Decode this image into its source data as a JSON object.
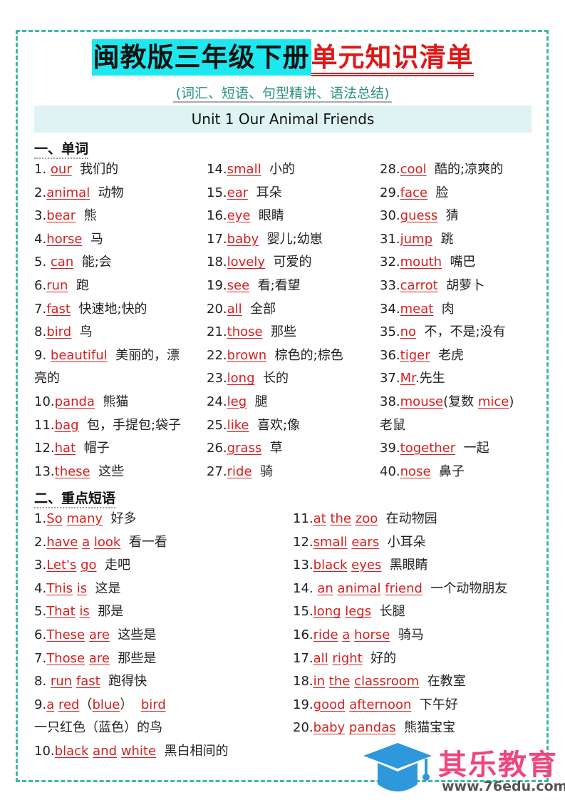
{
  "title": {
    "part1": "闽教版三年级下册",
    "part2": "单元知识清单"
  },
  "subtitle": "(词汇、短语、句型精讲、语法总结)",
  "unit": "Unit 1 Our Animal Friends",
  "words": {
    "heading": "一、单词",
    "columns": [
      [
        [
          {
            "t": "1. "
          },
          {
            "t": "our",
            "u": 1
          },
          {
            "t": "  我们的"
          }
        ],
        [
          {
            "t": "2."
          },
          {
            "t": "animal",
            "u": 1
          },
          {
            "t": "  动物"
          }
        ],
        [
          {
            "t": "3."
          },
          {
            "t": "bear",
            "u": 1
          },
          {
            "t": "  熊"
          }
        ],
        [
          {
            "t": "4."
          },
          {
            "t": "horse",
            "u": 1
          },
          {
            "t": "  马"
          }
        ],
        [
          {
            "t": "5. "
          },
          {
            "t": "can",
            "u": 1
          },
          {
            "t": "  能;会"
          }
        ],
        [
          {
            "t": "6."
          },
          {
            "t": "run",
            "u": 1
          },
          {
            "t": "  跑"
          }
        ],
        [
          {
            "t": "7."
          },
          {
            "t": "fast",
            "u": 1
          },
          {
            "t": "  快速地;快的"
          }
        ],
        [
          {
            "t": "8."
          },
          {
            "t": "bird",
            "u": 1
          },
          {
            "t": "  鸟"
          }
        ],
        [
          {
            "t": "9. "
          },
          {
            "t": "beautiful",
            "u": 1
          },
          {
            "t": "  美丽的，漂"
          },
          {
            "br": 1
          },
          {
            "t": "亮的"
          }
        ],
        [
          {
            "t": "10."
          },
          {
            "t": "panda",
            "u": 1
          },
          {
            "t": "  熊猫"
          }
        ],
        [
          {
            "t": "11."
          },
          {
            "t": "bag",
            "u": 1
          },
          {
            "t": "  包，手提包;袋子"
          }
        ],
        [
          {
            "t": "12."
          },
          {
            "t": "hat",
            "u": 1
          },
          {
            "t": "  帽子"
          }
        ],
        [
          {
            "t": "13."
          },
          {
            "t": "these",
            "u": 1
          },
          {
            "t": "  这些"
          }
        ]
      ],
      [
        [
          {
            "t": "14."
          },
          {
            "t": "small",
            "u": 1
          },
          {
            "t": "  小的"
          }
        ],
        [
          {
            "t": "15."
          },
          {
            "t": "ear",
            "u": 1
          },
          {
            "t": "  耳朵"
          }
        ],
        [
          {
            "t": "16."
          },
          {
            "t": "eye",
            "u": 1
          },
          {
            "t": "  眼睛"
          }
        ],
        [
          {
            "t": "17."
          },
          {
            "t": "baby",
            "u": 1
          },
          {
            "t": "  婴儿;幼崽"
          }
        ],
        [
          {
            "t": "18."
          },
          {
            "t": "lovely",
            "u": 1
          },
          {
            "t": "  可爱的"
          }
        ],
        [
          {
            "t": "19."
          },
          {
            "t": "see",
            "u": 1
          },
          {
            "t": "  看;看望"
          }
        ],
        [
          {
            "t": "20."
          },
          {
            "t": "all",
            "u": 1
          },
          {
            "t": "  全部"
          }
        ],
        [
          {
            "t": "21."
          },
          {
            "t": "those",
            "u": 1
          },
          {
            "t": "  那些"
          }
        ],
        [
          {
            "t": "22."
          },
          {
            "t": "brown",
            "u": 1
          },
          {
            "t": "  棕色的;棕色"
          }
        ],
        [
          {
            "t": "23."
          },
          {
            "t": "long",
            "u": 1
          },
          {
            "t": "  长的"
          }
        ],
        [
          {
            "t": "24."
          },
          {
            "t": "leg",
            "u": 1
          },
          {
            "t": "  腿"
          }
        ],
        [
          {
            "t": "25."
          },
          {
            "t": "like",
            "u": 1
          },
          {
            "t": "  喜欢;像"
          }
        ],
        [
          {
            "t": "26."
          },
          {
            "t": "grass",
            "u": 1
          },
          {
            "t": "  草"
          }
        ],
        [
          {
            "t": "27."
          },
          {
            "t": "ride",
            "u": 1
          },
          {
            "t": "  骑"
          }
        ]
      ],
      [
        [
          {
            "t": "28."
          },
          {
            "t": "cool",
            "u": 1
          },
          {
            "t": "  酷的;凉爽的"
          }
        ],
        [
          {
            "t": "29."
          },
          {
            "t": "face",
            "u": 1
          },
          {
            "t": "  脸"
          }
        ],
        [
          {
            "t": "30."
          },
          {
            "t": "guess",
            "u": 1
          },
          {
            "t": "  猜"
          }
        ],
        [
          {
            "t": "31."
          },
          {
            "t": "jump",
            "u": 1
          },
          {
            "t": "  跳"
          }
        ],
        [
          {
            "t": "32."
          },
          {
            "t": "mouth",
            "u": 1
          },
          {
            "t": "  嘴巴"
          }
        ],
        [
          {
            "t": "33."
          },
          {
            "t": "carrot",
            "u": 1
          },
          {
            "t": "  胡萝卜"
          }
        ],
        [
          {
            "t": "34."
          },
          {
            "t": "meat",
            "u": 1
          },
          {
            "t": "  肉"
          }
        ],
        [
          {
            "t": "35."
          },
          {
            "t": "no",
            "u": 1
          },
          {
            "t": "  不，不是;没有"
          }
        ],
        [
          {
            "t": "36."
          },
          {
            "t": "tiger",
            "u": 1
          },
          {
            "t": "  老虎"
          }
        ],
        [
          {
            "t": "37."
          },
          {
            "t": "Mr",
            "u": 1
          },
          {
            "t": ".先生"
          }
        ],
        [
          {
            "t": "38."
          },
          {
            "t": "mouse",
            "u": 1
          },
          {
            "t": "(复数 "
          },
          {
            "t": "mice",
            "u": 1
          },
          {
            "t": ")"
          },
          {
            "br": 1
          },
          {
            "t": "老鼠"
          }
        ],
        [
          {
            "t": "39."
          },
          {
            "t": "together",
            "u": 1
          },
          {
            "t": "  一起"
          }
        ],
        [
          {
            "t": "40."
          },
          {
            "t": "nose",
            "u": 1
          },
          {
            "t": "  鼻子"
          }
        ]
      ]
    ]
  },
  "phrases": {
    "heading": "二、重点短语",
    "columns": [
      [
        [
          {
            "t": "1."
          },
          {
            "t": "So",
            "u": 1
          },
          {
            "t": " "
          },
          {
            "t": "many",
            "u": 1
          },
          {
            "t": "  好多"
          }
        ],
        [
          {
            "t": "2."
          },
          {
            "t": "have",
            "u": 1
          },
          {
            "t": " "
          },
          {
            "t": "a",
            "u": 1
          },
          {
            "t": " "
          },
          {
            "t": "look",
            "u": 1
          },
          {
            "t": "  看一看"
          }
        ],
        [
          {
            "t": "3."
          },
          {
            "t": "Let's",
            "u": 1
          },
          {
            "t": " "
          },
          {
            "t": "go",
            "u": 1
          },
          {
            "t": "  走吧"
          }
        ],
        [
          {
            "t": "4."
          },
          {
            "t": "This",
            "u": 1
          },
          {
            "t": " "
          },
          {
            "t": "is",
            "u": 1
          },
          {
            "t": "  这是"
          }
        ],
        [
          {
            "t": "5."
          },
          {
            "t": "That",
            "u": 1
          },
          {
            "t": " "
          },
          {
            "t": "is",
            "u": 1
          },
          {
            "t": "  那是"
          }
        ],
        [
          {
            "t": "6."
          },
          {
            "t": "These",
            "u": 1
          },
          {
            "t": " "
          },
          {
            "t": "are",
            "u": 1
          },
          {
            "t": "  这些是"
          }
        ],
        [
          {
            "t": "7."
          },
          {
            "t": "Those",
            "u": 1
          },
          {
            "t": " "
          },
          {
            "t": "are",
            "u": 1
          },
          {
            "t": "  那些是"
          }
        ],
        [
          {
            "t": "8. "
          },
          {
            "t": "run",
            "u": 1
          },
          {
            "t": " "
          },
          {
            "t": "fast",
            "u": 1
          },
          {
            "t": "  跑得快"
          }
        ],
        [
          {
            "t": "9."
          },
          {
            "t": "a",
            "u": 1
          },
          {
            "t": " "
          },
          {
            "t": "red",
            "u": 1
          },
          {
            "t": "（"
          },
          {
            "t": "blue",
            "u": 1
          },
          {
            "t": "）  "
          },
          {
            "t": "bird",
            "u": 1
          },
          {
            "br": 1
          },
          {
            "t": "一只红色（蓝色）的鸟"
          }
        ],
        [
          {
            "t": "10."
          },
          {
            "t": "black",
            "u": 1
          },
          {
            "t": " "
          },
          {
            "t": "and",
            "u": 1
          },
          {
            "t": " "
          },
          {
            "t": "white",
            "u": 1
          },
          {
            "t": "  黑白相间的"
          }
        ]
      ],
      [
        [
          {
            "t": "11."
          },
          {
            "t": "at",
            "u": 1
          },
          {
            "t": " "
          },
          {
            "t": "the",
            "u": 1
          },
          {
            "t": " "
          },
          {
            "t": "zoo",
            "u": 1
          },
          {
            "t": "  在动物园"
          }
        ],
        [
          {
            "t": "12."
          },
          {
            "t": "small",
            "u": 1
          },
          {
            "t": " "
          },
          {
            "t": "ears",
            "u": 1
          },
          {
            "t": "  小耳朵"
          }
        ],
        [
          {
            "t": "13."
          },
          {
            "t": "black",
            "u": 1
          },
          {
            "t": " "
          },
          {
            "t": "eyes",
            "u": 1
          },
          {
            "t": "  黑眼睛"
          }
        ],
        [
          {
            "t": "14. "
          },
          {
            "t": "an",
            "u": 1
          },
          {
            "t": " "
          },
          {
            "t": "animal",
            "u": 1
          },
          {
            "t": " "
          },
          {
            "t": "friend",
            "u": 1
          },
          {
            "t": "  一个动物朋友"
          }
        ],
        [
          {
            "t": "15."
          },
          {
            "t": "long",
            "u": 1
          },
          {
            "t": " "
          },
          {
            "t": "legs",
            "u": 1
          },
          {
            "t": "  长腿"
          }
        ],
        [
          {
            "t": "16."
          },
          {
            "t": "ride",
            "u": 1
          },
          {
            "t": " "
          },
          {
            "t": "a",
            "u": 1
          },
          {
            "t": " "
          },
          {
            "t": "horse",
            "u": 1
          },
          {
            "t": "  骑马"
          }
        ],
        [
          {
            "t": "17."
          },
          {
            "t": "all",
            "u": 1
          },
          {
            "t": " "
          },
          {
            "t": "right",
            "u": 1
          },
          {
            "t": "  好的"
          }
        ],
        [
          {
            "t": "18."
          },
          {
            "t": "in",
            "u": 1
          },
          {
            "t": " "
          },
          {
            "t": "the",
            "u": 1
          },
          {
            "t": " "
          },
          {
            "t": "classroom",
            "u": 1
          },
          {
            "t": "  在教室"
          }
        ],
        [
          {
            "t": "19."
          },
          {
            "t": "good",
            "u": 1
          },
          {
            "t": " "
          },
          {
            "t": "afternoon",
            "u": 1
          },
          {
            "t": "  下午好"
          }
        ],
        [
          {
            "t": "20."
          },
          {
            "t": "baby",
            "u": 1
          },
          {
            "t": " "
          },
          {
            "t": "pandas",
            "u": 1
          },
          {
            "t": "  熊猫宝宝"
          }
        ]
      ]
    ]
  },
  "watermark": {
    "name": "其乐教育",
    "url": "www.76edu.com",
    "icon": "graduation-cap-icon",
    "colors": {
      "cap": "#2f97dc",
      "name": "#f0457f"
    }
  },
  "colors": {
    "border": "#3fb8a4",
    "highlight": "#1de8ef",
    "accent": "#e01818",
    "unit_bg": "#dff3f3"
  }
}
